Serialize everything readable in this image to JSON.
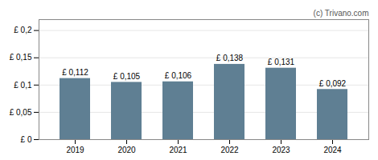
{
  "chart_data": {
    "type": "bar",
    "categories": [
      "2019",
      "2020",
      "2021",
      "2022",
      "2023",
      "2024"
    ],
    "values": [
      0.112,
      0.105,
      0.106,
      0.138,
      0.131,
      0.092
    ],
    "value_labels": [
      "£ 0,112",
      "£ 0,105",
      "£ 0,106",
      "£ 0,138",
      "£ 0,131",
      "£ 0,092"
    ],
    "data_labels": true,
    "color": "#5f7f93",
    "ylim": [
      0,
      0.22
    ],
    "yticks": [
      {
        "value": 0,
        "label": "£ 0"
      },
      {
        "value": 0.05,
        "label": "£ 0,05"
      },
      {
        "value": 0.1,
        "label": "£ 0,1"
      },
      {
        "value": 0.15,
        "label": "£ 0,15"
      },
      {
        "value": 0.2,
        "label": "£ 0,2"
      }
    ],
    "grid": true,
    "annotations": [
      "(c) Trivano.com"
    ]
  }
}
